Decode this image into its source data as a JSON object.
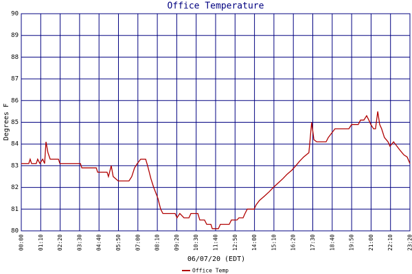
{
  "chart_data": {
    "type": "line",
    "title": "Office Temperature",
    "x_label": "06/07/20 (EDT)",
    "y_label": "Degrees F",
    "xlim": [
      0,
      1400
    ],
    "ylim": [
      80,
      90
    ],
    "yticks": [
      80,
      81,
      82,
      83,
      84,
      85,
      86,
      87,
      88,
      89,
      90
    ],
    "xticks": [
      {
        "value": 0,
        "label": "00:00"
      },
      {
        "value": 70,
        "label": "01:10"
      },
      {
        "value": 140,
        "label": "02:20"
      },
      {
        "value": 210,
        "label": "03:30"
      },
      {
        "value": 280,
        "label": "04:40"
      },
      {
        "value": 350,
        "label": "05:50"
      },
      {
        "value": 420,
        "label": "07:00"
      },
      {
        "value": 490,
        "label": "08:10"
      },
      {
        "value": 560,
        "label": "09:20"
      },
      {
        "value": 630,
        "label": "10:30"
      },
      {
        "value": 700,
        "label": "11:40"
      },
      {
        "value": 770,
        "label": "12:50"
      },
      {
        "value": 840,
        "label": "14:00"
      },
      {
        "value": 910,
        "label": "15:10"
      },
      {
        "value": 980,
        "label": "16:20"
      },
      {
        "value": 1050,
        "label": "17:30"
      },
      {
        "value": 1120,
        "label": "18:40"
      },
      {
        "value": 1190,
        "label": "19:50"
      },
      {
        "value": 1260,
        "label": "21:00"
      },
      {
        "value": 1330,
        "label": "22:10"
      },
      {
        "value": 1400,
        "label": "23:20"
      }
    ],
    "grid": true,
    "legend": "bottom",
    "series": [
      {
        "name": "Office Temp",
        "color": "#b00000",
        "x": [
          0,
          27,
          32,
          37,
          54,
          59,
          67,
          77,
          84,
          89,
          96,
          104,
          134,
          139,
          213,
          218,
          270,
          275,
          309,
          314,
          324,
          331,
          349,
          388,
          398,
          408,
          418,
          430,
          448,
          455,
          467,
          477,
          492,
          502,
          510,
          554,
          561,
          571,
          586,
          604,
          611,
          636,
          643,
          660,
          668,
          683,
          688,
          710,
          717,
          749,
          757,
          777,
          784,
          799,
          806,
          814,
          839,
          846,
          858,
          876,
          893,
          908,
          925,
          942,
          957,
          975,
          989,
          1002,
          1017,
          1036,
          1046,
          1054,
          1064,
          1098,
          1106,
          1118,
          1130,
          1180,
          1190,
          1214,
          1222,
          1234,
          1244,
          1252,
          1259,
          1269,
          1276,
          1284,
          1291,
          1298,
          1308,
          1321,
          1328,
          1341,
          1353,
          1365,
          1378,
          1390,
          1400
        ],
        "values": [
          83.1,
          83.1,
          83.3,
          83.1,
          83.1,
          83.3,
          83.1,
          83.3,
          83.1,
          84.1,
          83.6,
          83.3,
          83.3,
          83.1,
          83.1,
          82.9,
          82.9,
          82.7,
          82.7,
          82.5,
          83.0,
          82.5,
          82.3,
          82.3,
          82.5,
          82.9,
          83.1,
          83.3,
          83.3,
          83.0,
          82.4,
          82.0,
          81.5,
          81.0,
          80.8,
          80.8,
          80.6,
          80.8,
          80.6,
          80.6,
          80.8,
          80.8,
          80.5,
          80.5,
          80.3,
          80.3,
          80.1,
          80.1,
          80.3,
          80.3,
          80.5,
          80.5,
          80.6,
          80.6,
          80.8,
          81.0,
          81.0,
          81.2,
          81.4,
          81.6,
          81.8,
          82.0,
          82.2,
          82.4,
          82.6,
          82.8,
          83.0,
          83.2,
          83.4,
          83.6,
          85.0,
          84.2,
          84.1,
          84.1,
          84.3,
          84.5,
          84.7,
          84.7,
          84.9,
          84.9,
          85.1,
          85.1,
          85.3,
          85.1,
          84.9,
          84.7,
          84.7,
          85.5,
          84.9,
          84.7,
          84.3,
          84.1,
          83.9,
          84.1,
          83.9,
          83.7,
          83.5,
          83.4,
          83.1
        ]
      }
    ]
  }
}
